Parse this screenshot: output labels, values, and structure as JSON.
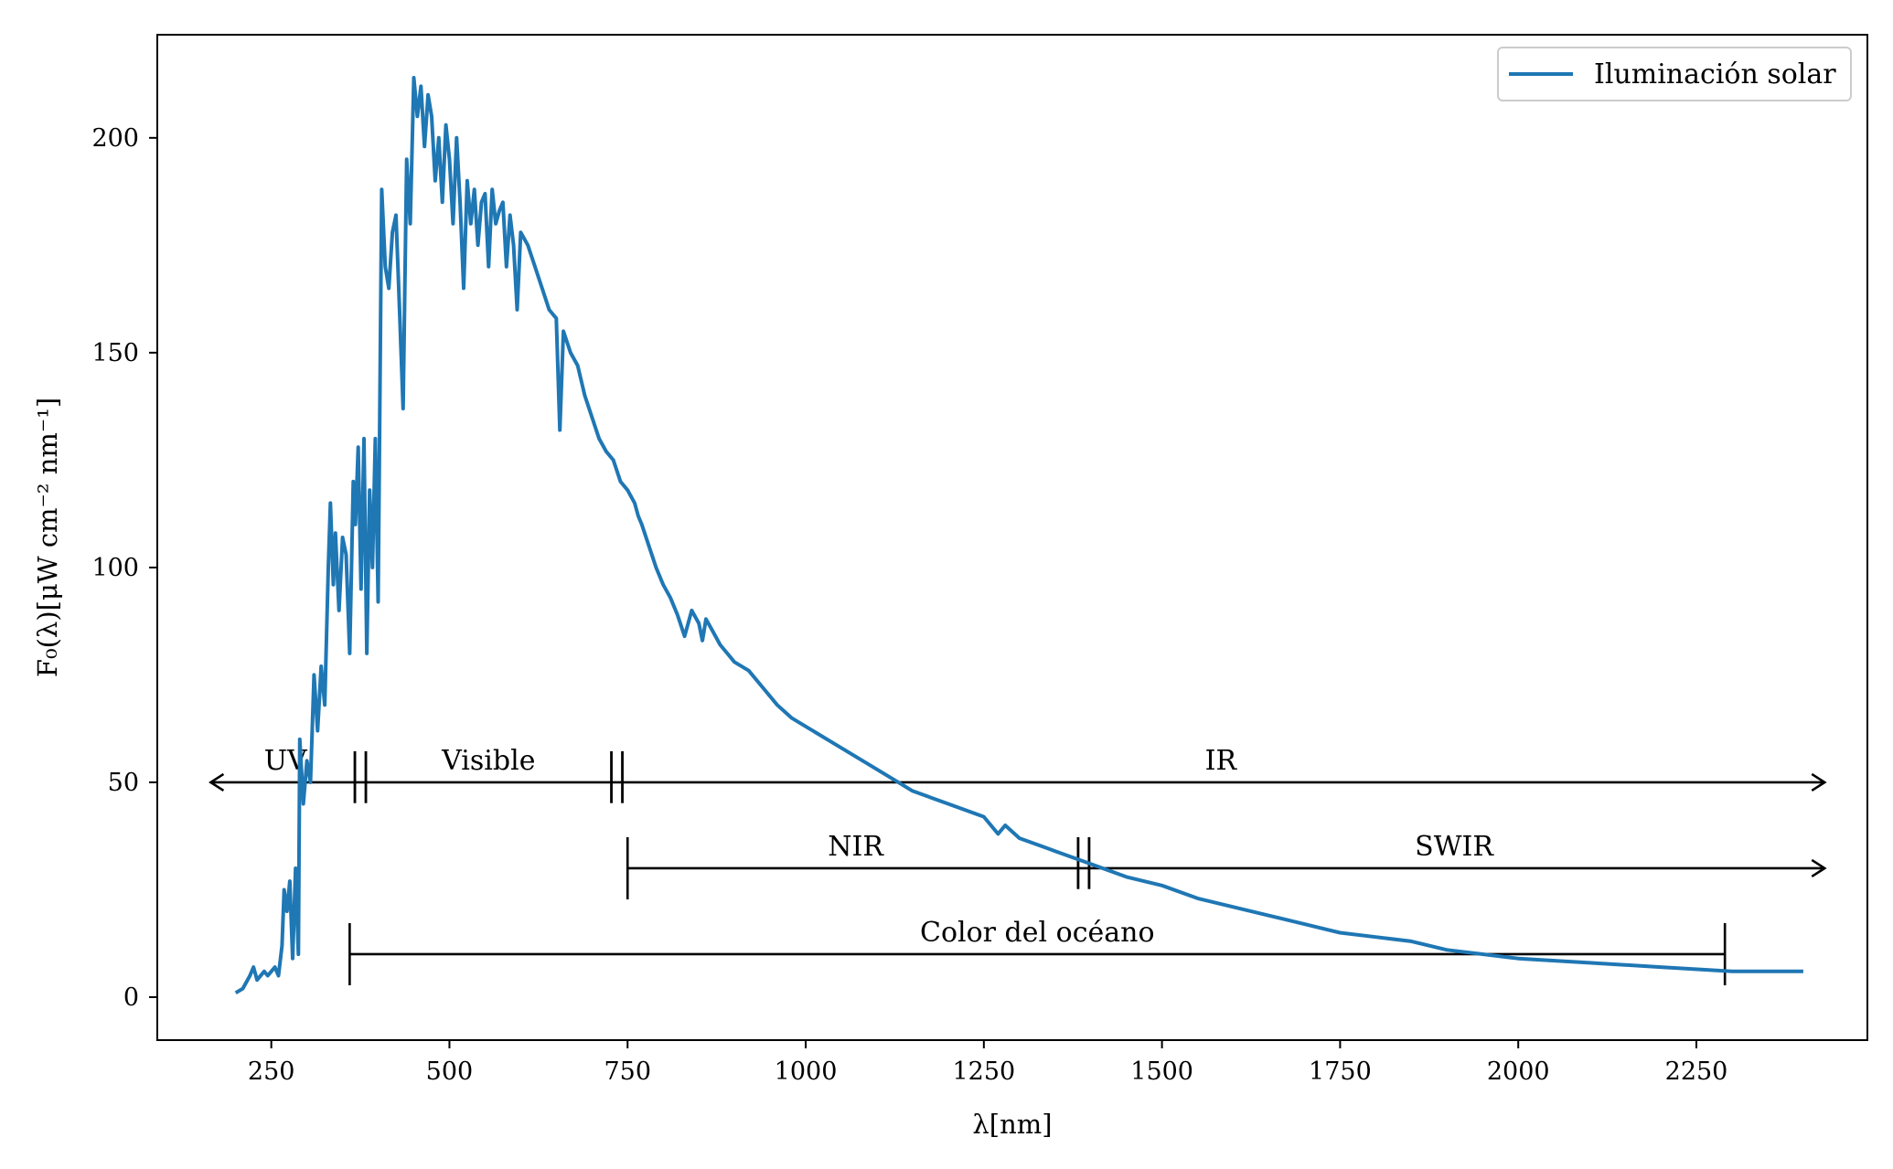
{
  "chart_data": {
    "type": "line",
    "xlabel": "λ[nm]",
    "ylabel": "F₀(λ)[μW cm⁻² nm⁻¹]",
    "xlim": [
      90,
      2490
    ],
    "ylim": [
      -10,
      224
    ],
    "x_ticks": [
      250,
      500,
      750,
      1000,
      1250,
      1500,
      1750,
      2000,
      2250
    ],
    "y_ticks": [
      0,
      50,
      100,
      150,
      200
    ],
    "grid": false,
    "legend": {
      "position": "top-right"
    },
    "series": [
      {
        "name": "Iluminación solar",
        "color": "#1f77b4",
        "x": [
          200,
          210,
          220,
          225,
          230,
          240,
          245,
          250,
          255,
          260,
          265,
          268,
          272,
          276,
          280,
          284,
          288,
          290,
          295,
          300,
          305,
          310,
          315,
          320,
          325,
          330,
          333,
          337,
          340,
          345,
          350,
          355,
          360,
          365,
          368,
          372,
          376,
          380,
          384,
          388,
          392,
          396,
          400,
          405,
          410,
          415,
          420,
          425,
          430,
          435,
          440,
          445,
          450,
          455,
          460,
          465,
          470,
          475,
          480,
          485,
          490,
          495,
          500,
          505,
          510,
          515,
          520,
          525,
          530,
          535,
          540,
          545,
          550,
          555,
          560,
          565,
          570,
          575,
          580,
          585,
          590,
          595,
          600,
          610,
          620,
          630,
          640,
          650,
          655,
          660,
          670,
          680,
          690,
          700,
          710,
          720,
          730,
          740,
          750,
          760,
          765,
          770,
          780,
          790,
          800,
          810,
          820,
          830,
          840,
          850,
          855,
          860,
          870,
          880,
          890,
          900,
          920,
          940,
          950,
          960,
          980,
          1000,
          1050,
          1100,
          1130,
          1150,
          1200,
          1250,
          1270,
          1280,
          1300,
          1350,
          1400,
          1450,
          1500,
          1550,
          1600,
          1650,
          1700,
          1750,
          1800,
          1850,
          1900,
          1950,
          2000,
          2100,
          2200,
          2300,
          2400
        ],
        "values": [
          1,
          2,
          5,
          7,
          4,
          6,
          5,
          6,
          7,
          5,
          12,
          25,
          20,
          27,
          9,
          30,
          10,
          60,
          45,
          55,
          50,
          75,
          62,
          77,
          68,
          100,
          115,
          96,
          108,
          90,
          107,
          103,
          80,
          120,
          110,
          128,
          95,
          130,
          80,
          118,
          100,
          130,
          92,
          188,
          170,
          165,
          178,
          182,
          160,
          137,
          195,
          180,
          214,
          205,
          212,
          198,
          210,
          205,
          190,
          200,
          185,
          203,
          195,
          180,
          200,
          185,
          165,
          190,
          180,
          188,
          175,
          185,
          187,
          170,
          188,
          180,
          183,
          185,
          170,
          182,
          175,
          160,
          178,
          175,
          170,
          165,
          160,
          158,
          132,
          155,
          150,
          147,
          140,
          135,
          130,
          127,
          125,
          120,
          118,
          115,
          112,
          110,
          105,
          100,
          96,
          93,
          89,
          84,
          90,
          87,
          83,
          88,
          85,
          82,
          80,
          78,
          76,
          72,
          70,
          68,
          65,
          63,
          58,
          53,
          50,
          48,
          45,
          42,
          38,
          40,
          37,
          34,
          31,
          28,
          26,
          23,
          21,
          19,
          17,
          15,
          14,
          13,
          11,
          10,
          9,
          8,
          7,
          6,
          6
        ]
      }
    ],
    "bands": [
      {
        "label": "UV",
        "row_y": 50,
        "x_start": 165,
        "x_end": 375,
        "start_style": "arrow",
        "end_style": "double-tick"
      },
      {
        "label": "Visible",
        "row_y": 50,
        "x_start": 375,
        "x_end": 735,
        "start_style": "double-tick",
        "end_style": "double-tick"
      },
      {
        "label": "IR",
        "row_y": 50,
        "x_start": 735,
        "x_end": 2430,
        "start_style": "double-tick",
        "end_style": "arrow"
      },
      {
        "label": "NIR",
        "row_y": 30,
        "x_start": 750,
        "x_end": 1390,
        "start_style": "tick",
        "end_style": "double-tick"
      },
      {
        "label": "SWIR",
        "row_y": 30,
        "x_start": 1390,
        "x_end": 2430,
        "start_style": "double-tick",
        "end_style": "arrow"
      },
      {
        "label": "Color del océano",
        "row_y": 10,
        "x_start": 360,
        "x_end": 2290,
        "start_style": "tick",
        "end_style": "tick"
      }
    ]
  }
}
